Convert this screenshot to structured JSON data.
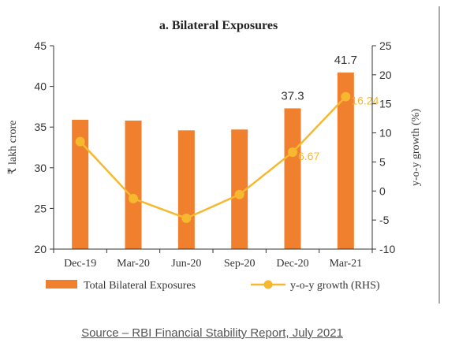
{
  "chart_data": {
    "type": "bar",
    "title": "a. Bilateral Exposures",
    "categories": [
      "Dec-19",
      "Mar-20",
      "Jun-20",
      "Sep-20",
      "Dec-20",
      "Mar-21"
    ],
    "ylabel": "₹ lakh crore",
    "y2label": "y-o-y growth (%)",
    "ylim": [
      20,
      45
    ],
    "yticks": [
      20,
      25,
      30,
      35,
      40,
      45
    ],
    "y2lim": [
      -10,
      25
    ],
    "y2ticks": [
      -10,
      -5,
      0,
      5,
      10,
      15,
      20,
      25
    ],
    "series": [
      {
        "name": "Total Bilateral Exposures",
        "type": "bar",
        "axis": "left",
        "color": "#F07F2E",
        "values": [
          35.9,
          35.8,
          34.6,
          34.7,
          37.3,
          41.7
        ],
        "labels": [
          "",
          "",
          "",
          "",
          "37.3",
          "41.7"
        ]
      },
      {
        "name": "y-o-y growth (RHS)",
        "type": "line",
        "axis": "right",
        "color": "#F5B82E",
        "values": [
          8.5,
          -1.3,
          -4.7,
          -0.6,
          6.67,
          16.24
        ],
        "labels": [
          "",
          "",
          "",
          "",
          "6.67",
          "16.24"
        ]
      }
    ],
    "legend_position": "bottom",
    "grid": false
  },
  "source": "Source – RBI Financial Stability Report, July 2021"
}
